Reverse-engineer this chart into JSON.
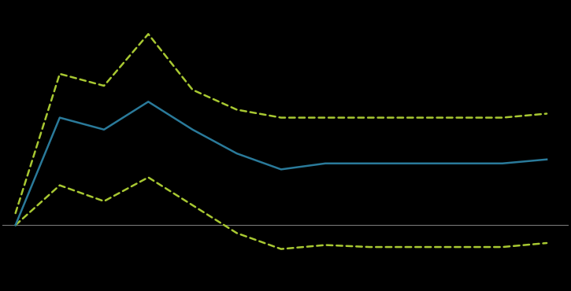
{
  "x": [
    0,
    1,
    2,
    3,
    4,
    5,
    6,
    7,
    8,
    9,
    10,
    11,
    12
  ],
  "y_main": [
    0.0,
    0.27,
    0.24,
    0.31,
    0.24,
    0.18,
    0.14,
    0.155,
    0.155,
    0.155,
    0.155,
    0.155,
    0.165
  ],
  "y_upper": [
    0.03,
    0.38,
    0.35,
    0.48,
    0.34,
    0.29,
    0.27,
    0.27,
    0.27,
    0.27,
    0.27,
    0.27,
    0.28
  ],
  "y_lower": [
    0.0,
    0.1,
    0.06,
    0.12,
    0.05,
    -0.02,
    -0.06,
    -0.05,
    -0.055,
    -0.055,
    -0.055,
    -0.055,
    -0.045
  ],
  "main_color": "#2a7a9a",
  "band_color": "#a8c832",
  "background_color": "#000000",
  "zero_line_color": "#777777",
  "main_linewidth": 1.8,
  "band_linewidth": 1.8,
  "figsize": [
    7.25,
    3.7
  ],
  "dpi": 100,
  "xlim": [
    -0.3,
    12.5
  ],
  "ylim": [
    -0.16,
    0.56
  ]
}
